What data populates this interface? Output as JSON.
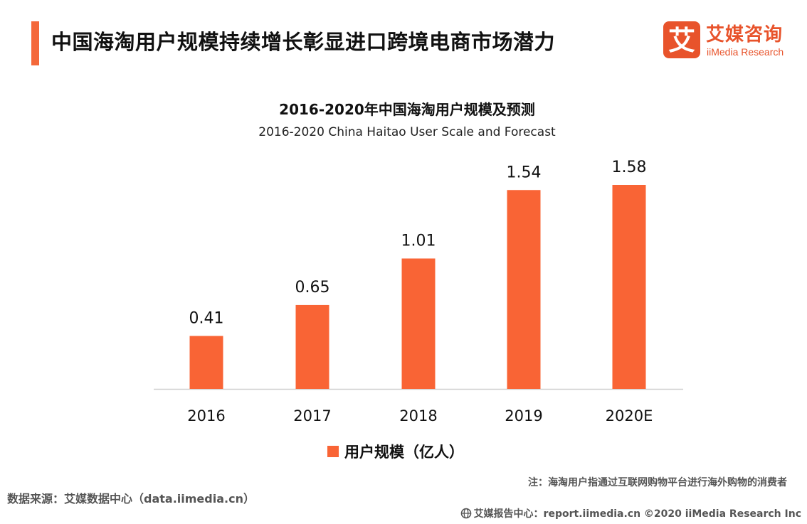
{
  "header": {
    "title": "中国海淘用户规模持续增长彰显进口跨境电商市场潜力",
    "accent_color": "#F4683A"
  },
  "brand": {
    "logo_glyph": "艾",
    "name_cn": "艾媒咨询",
    "name_en": "iiMedia Research",
    "color": "#E8532B"
  },
  "chart_data": {
    "type": "bar",
    "title": "2016-2020年中国海淘用户规模及预测",
    "subtitle": "2016-2020 China Haitao User Scale and Forecast",
    "categories": [
      "2016",
      "2017",
      "2018",
      "2019",
      "2020E"
    ],
    "series": [
      {
        "name": "用户规模（亿人）",
        "values": [
          0.41,
          0.65,
          1.01,
          1.54,
          1.58
        ],
        "color": "#F96435"
      }
    ],
    "data_labels": [
      "0.41",
      "0.65",
      "1.01",
      "1.54",
      "1.58"
    ],
    "ylim": [
      0,
      1.6
    ],
    "grid": false,
    "legend_position": "bottom"
  },
  "note": "注：海淘用户指通过互联网购物平台进行海外购物的消费者",
  "source": "数据来源：艾媒数据中心（data.iimedia.cn）",
  "footer": {
    "icon": "globe-icon",
    "text": "艾媒报告中心：report.iimedia.cn  ©2020  iiMedia Research  Inc"
  }
}
